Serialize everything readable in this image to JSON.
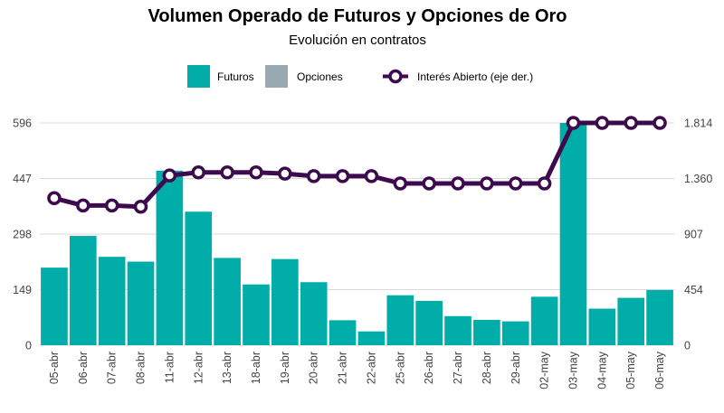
{
  "chart_data": {
    "type": "bar",
    "title": "Volumen Operado de Futuros y Opciones de Oro",
    "subtitle": "Evolución en contratos",
    "categories": [
      "05-abr",
      "06-abr",
      "07-abr",
      "08-abr",
      "11-abr",
      "12-abr",
      "13-abr",
      "18-abr",
      "19-abr",
      "20-abr",
      "21-abr",
      "22-abr",
      "25-abr",
      "26-abr",
      "27-abr",
      "28-abr",
      "29-abr",
      "02-may",
      "03-may",
      "04-may",
      "05-may",
      "06-may"
    ],
    "series": [
      {
        "name": "Futuros",
        "type": "bar",
        "axis": "left",
        "color": "#00ADA9",
        "values": [
          208,
          293,
          237,
          224,
          468,
          358,
          234,
          163,
          231,
          169,
          67,
          37,
          134,
          119,
          78,
          68,
          64,
          130,
          596,
          98,
          127,
          148
        ]
      },
      {
        "name": "Opciones",
        "type": "bar",
        "axis": "left",
        "color": "#98A9B3",
        "values": [
          0,
          0,
          0,
          0,
          0,
          0,
          0,
          0,
          0,
          0,
          0,
          0,
          0,
          0,
          0,
          0,
          0,
          0,
          0,
          0,
          0,
          0
        ]
      },
      {
        "name": "Interés Abierto (eje der.)",
        "type": "line",
        "axis": "right",
        "color": "#3D0A4D",
        "values": [
          1200,
          1140,
          1140,
          1130,
          1385,
          1410,
          1410,
          1410,
          1400,
          1380,
          1380,
          1380,
          1320,
          1320,
          1320,
          1320,
          1320,
          1320,
          1814,
          1814,
          1814,
          1814
        ]
      }
    ],
    "left_axis": {
      "ticks": [
        0,
        149,
        298,
        447,
        596
      ],
      "tick_labels": [
        "0",
        "149",
        "298",
        "447",
        "596"
      ],
      "ylim": [
        0,
        596
      ]
    },
    "right_axis": {
      "ticks": [
        0,
        454,
        907,
        1360,
        1814
      ],
      "tick_labels": [
        "0",
        "454",
        "907",
        "1.360",
        "1.814"
      ],
      "ylim": [
        0,
        1814
      ]
    },
    "legend_position": "top-center",
    "grid": true
  }
}
